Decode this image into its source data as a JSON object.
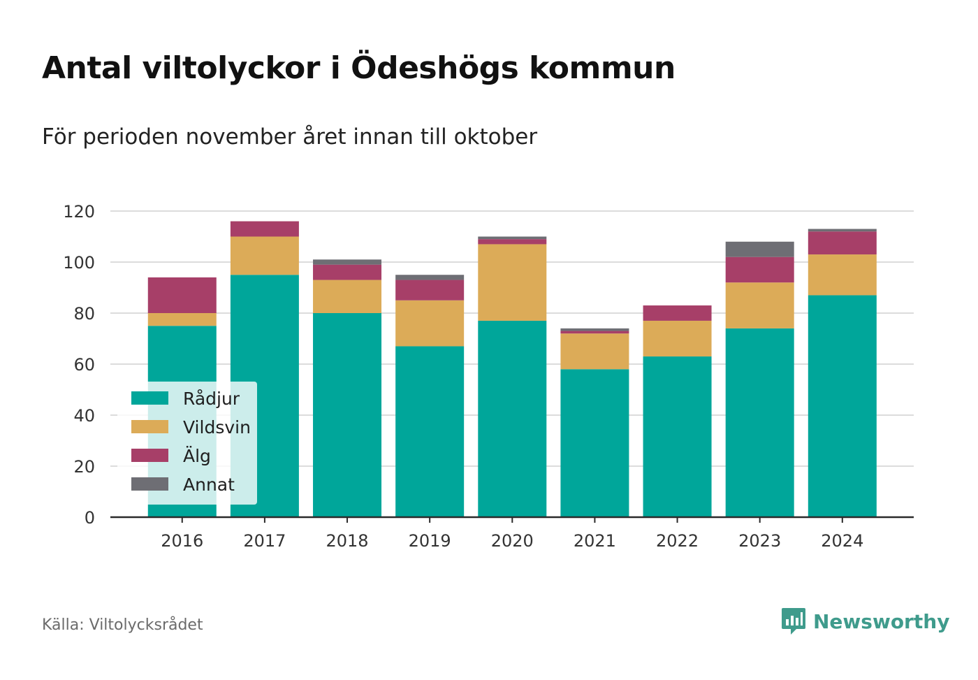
{
  "title": "Antal viltolyckor i Ödeshögs kommun",
  "subtitle": "För perioden november året innan till oktober",
  "source": "Källa: Viltolycksrådet",
  "brand": {
    "name": "Newsworthy",
    "icon": "newsworthy-logo-icon",
    "color": "#3f9b8c"
  },
  "chart_data": {
    "type": "bar",
    "stacked": true,
    "categories": [
      "2016",
      "2017",
      "2018",
      "2019",
      "2020",
      "2021",
      "2022",
      "2023",
      "2024"
    ],
    "series": [
      {
        "name": "Rådjur",
        "color": "#00a69a",
        "values": [
          75,
          95,
          80,
          67,
          77,
          58,
          63,
          74,
          87
        ]
      },
      {
        "name": "Vildsvin",
        "color": "#dcab58",
        "values": [
          5,
          15,
          13,
          18,
          30,
          14,
          14,
          18,
          16
        ]
      },
      {
        "name": "Älg",
        "color": "#a73f68",
        "values": [
          14,
          6,
          6,
          8,
          2,
          1,
          6,
          10,
          9
        ]
      },
      {
        "name": "Annat",
        "color": "#6e6e74",
        "values": [
          0,
          0,
          2,
          2,
          1,
          1,
          0,
          6,
          1
        ]
      }
    ],
    "yticks": [
      0,
      20,
      40,
      60,
      80,
      100,
      120
    ],
    "ylim": [
      0,
      120
    ],
    "grid": true,
    "legend": "bottom-left"
  }
}
